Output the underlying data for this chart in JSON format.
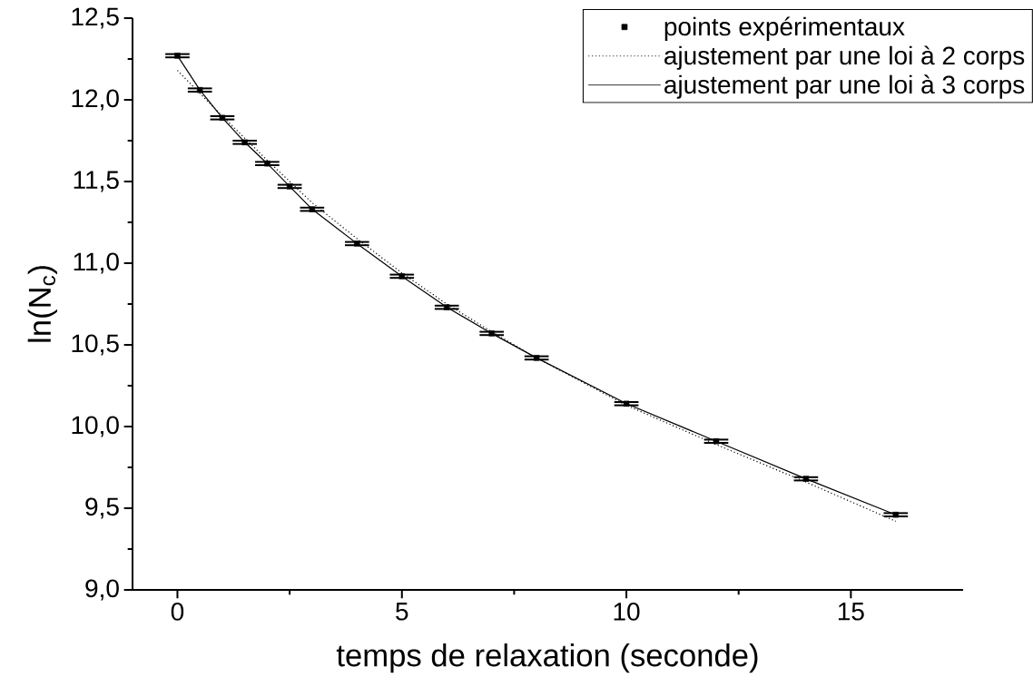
{
  "chart_data": {
    "type": "scatter",
    "xlabel": "temps de relaxation (seconde)",
    "ylabel": "ln(N$_{c}$)",
    "xlim": [
      -1,
      17.5
    ],
    "ylim": [
      9.0,
      12.5
    ],
    "xticks": [
      0,
      5,
      10,
      15
    ],
    "yticks": [
      {
        "value": 9.0,
        "label": "9,0"
      },
      {
        "value": 9.5,
        "label": "9,5"
      },
      {
        "value": 10.0,
        "label": "10,0"
      },
      {
        "value": 10.5,
        "label": "10,5"
      },
      {
        "value": 11.0,
        "label": "11,0"
      },
      {
        "value": 11.5,
        "label": "11,5"
      },
      {
        "value": 12.0,
        "label": "12,0"
      },
      {
        "value": 12.5,
        "label": "12,5"
      }
    ],
    "legend": "top right",
    "grid": false,
    "series": [
      {
        "name": "points expérimentaux",
        "color": "#000000",
        "marker": "square",
        "x": [
          0,
          0.5,
          1,
          1.5,
          2,
          2.5,
          3,
          4,
          5,
          6,
          7,
          8,
          10,
          12,
          14,
          16
        ],
        "values": [
          12.27,
          12.06,
          11.89,
          11.74,
          11.61,
          11.47,
          11.33,
          11.12,
          10.92,
          10.73,
          10.57,
          10.42,
          10.14,
          9.91,
          9.68,
          9.46
        ],
        "errors": [
          0.01,
          0.01,
          0.01,
          0.01,
          0.01,
          0.01,
          0.01,
          0.01,
          0.01,
          0.01,
          0.01,
          0.01,
          0.01,
          0.01,
          0.01,
          0.01
        ]
      },
      {
        "name": "ajustement par une loi à 2 corps",
        "type": "line",
        "color": "#000000",
        "line_style": "dotted",
        "marker": "none",
        "x": [
          0,
          1,
          2,
          3,
          4,
          5,
          6,
          7,
          8,
          10,
          12,
          14,
          16
        ],
        "values": [
          12.18,
          11.9,
          11.63,
          11.37,
          11.15,
          10.94,
          10.75,
          10.58,
          10.42,
          10.13,
          9.89,
          9.66,
          9.42
        ]
      },
      {
        "name": "ajustement par une loi à 3 corps",
        "type": "line",
        "color": "#000000",
        "line_style": "solid",
        "marker": "none",
        "x": [
          0,
          0.5,
          1,
          1.5,
          2,
          2.5,
          3,
          4,
          5,
          6,
          7,
          8,
          10,
          12,
          14,
          16
        ],
        "values": [
          12.27,
          12.06,
          11.89,
          11.74,
          11.61,
          11.47,
          11.33,
          11.12,
          10.92,
          10.73,
          10.57,
          10.42,
          10.14,
          9.91,
          9.68,
          9.46
        ]
      }
    ]
  }
}
